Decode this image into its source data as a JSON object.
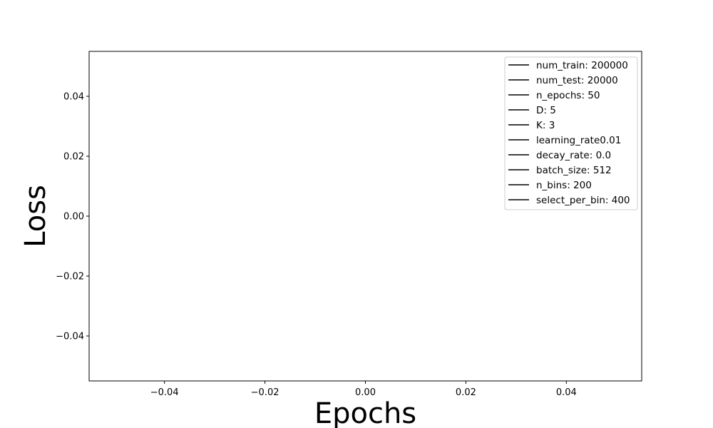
{
  "chart_data": {
    "type": "line",
    "title": "",
    "xlabel": "Epochs",
    "ylabel": "Loss",
    "xlim": [
      -0.055,
      0.055
    ],
    "ylim": [
      -0.055,
      0.055
    ],
    "x_ticks": [
      -0.04,
      -0.02,
      0.0,
      0.02,
      0.04
    ],
    "x_tick_labels": [
      "−0.04",
      "−0.02",
      "0.00",
      "0.02",
      "0.04"
    ],
    "y_ticks": [
      0.04,
      0.02,
      0.0,
      -0.02,
      -0.04
    ],
    "y_tick_labels": [
      "0.04",
      "0.02",
      "0.00",
      "−0.02",
      "−0.04"
    ],
    "grid": false,
    "legend_position": "top-right",
    "series": [
      {
        "name": "num_train: 200000",
        "color": "#000000",
        "values": []
      },
      {
        "name": "num_test: 20000",
        "color": "#000000",
        "values": []
      },
      {
        "name": "n_epochs: 50",
        "color": "#000000",
        "values": []
      },
      {
        "name": "D: 5",
        "color": "#000000",
        "values": []
      },
      {
        "name": "K: 3",
        "color": "#000000",
        "values": []
      },
      {
        "name": "learning_rate0.01",
        "color": "#000000",
        "values": []
      },
      {
        "name": "decay_rate: 0.0",
        "color": "#000000",
        "values": []
      },
      {
        "name": "batch_size: 512",
        "color": "#000000",
        "values": []
      },
      {
        "name": "n_bins: 200",
        "color": "#000000",
        "values": []
      },
      {
        "name": "select_per_bin: 400",
        "color": "#000000",
        "values": []
      }
    ]
  }
}
